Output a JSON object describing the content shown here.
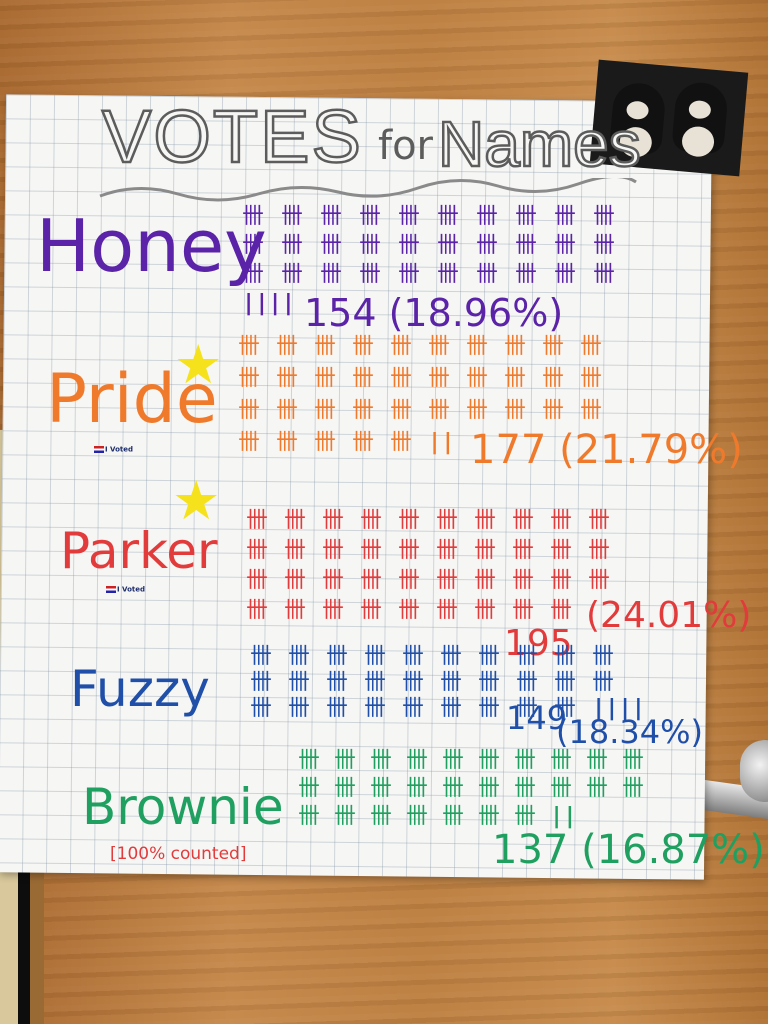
{
  "poster": {
    "title_votes": "VOTES",
    "title_for": "for",
    "title_names": "Names",
    "counted_note": "[100% counted]",
    "sticker_text": "I Voted"
  },
  "candidates": [
    {
      "name": "Honey",
      "color": "#5a23a8",
      "tally": 154,
      "result": "154 (18.96%)",
      "starred": false,
      "sticker": false
    },
    {
      "name": "Pride",
      "color": "#f07a2c",
      "tally": 177,
      "result": "177 (21.79%)",
      "starred": true,
      "sticker": true
    },
    {
      "name": "Parker",
      "color": "#e23b3b",
      "tally": 195,
      "result_count": "195",
      "result_pct": "(24.01%)",
      "starred": true,
      "sticker": true
    },
    {
      "name": "Fuzzy",
      "color": "#1f4fa8",
      "tally": 149,
      "result_count": "149",
      "result_pct": "(18.34%)",
      "starred": false,
      "sticker": false
    },
    {
      "name": "Brownie",
      "color": "#20a060",
      "tally": 137,
      "result": "137 (16.87%)",
      "starred": false,
      "sticker": false
    }
  ],
  "icons": {
    "star": "star-icon",
    "flag": "flag-icon",
    "bears": "bears-photo"
  }
}
